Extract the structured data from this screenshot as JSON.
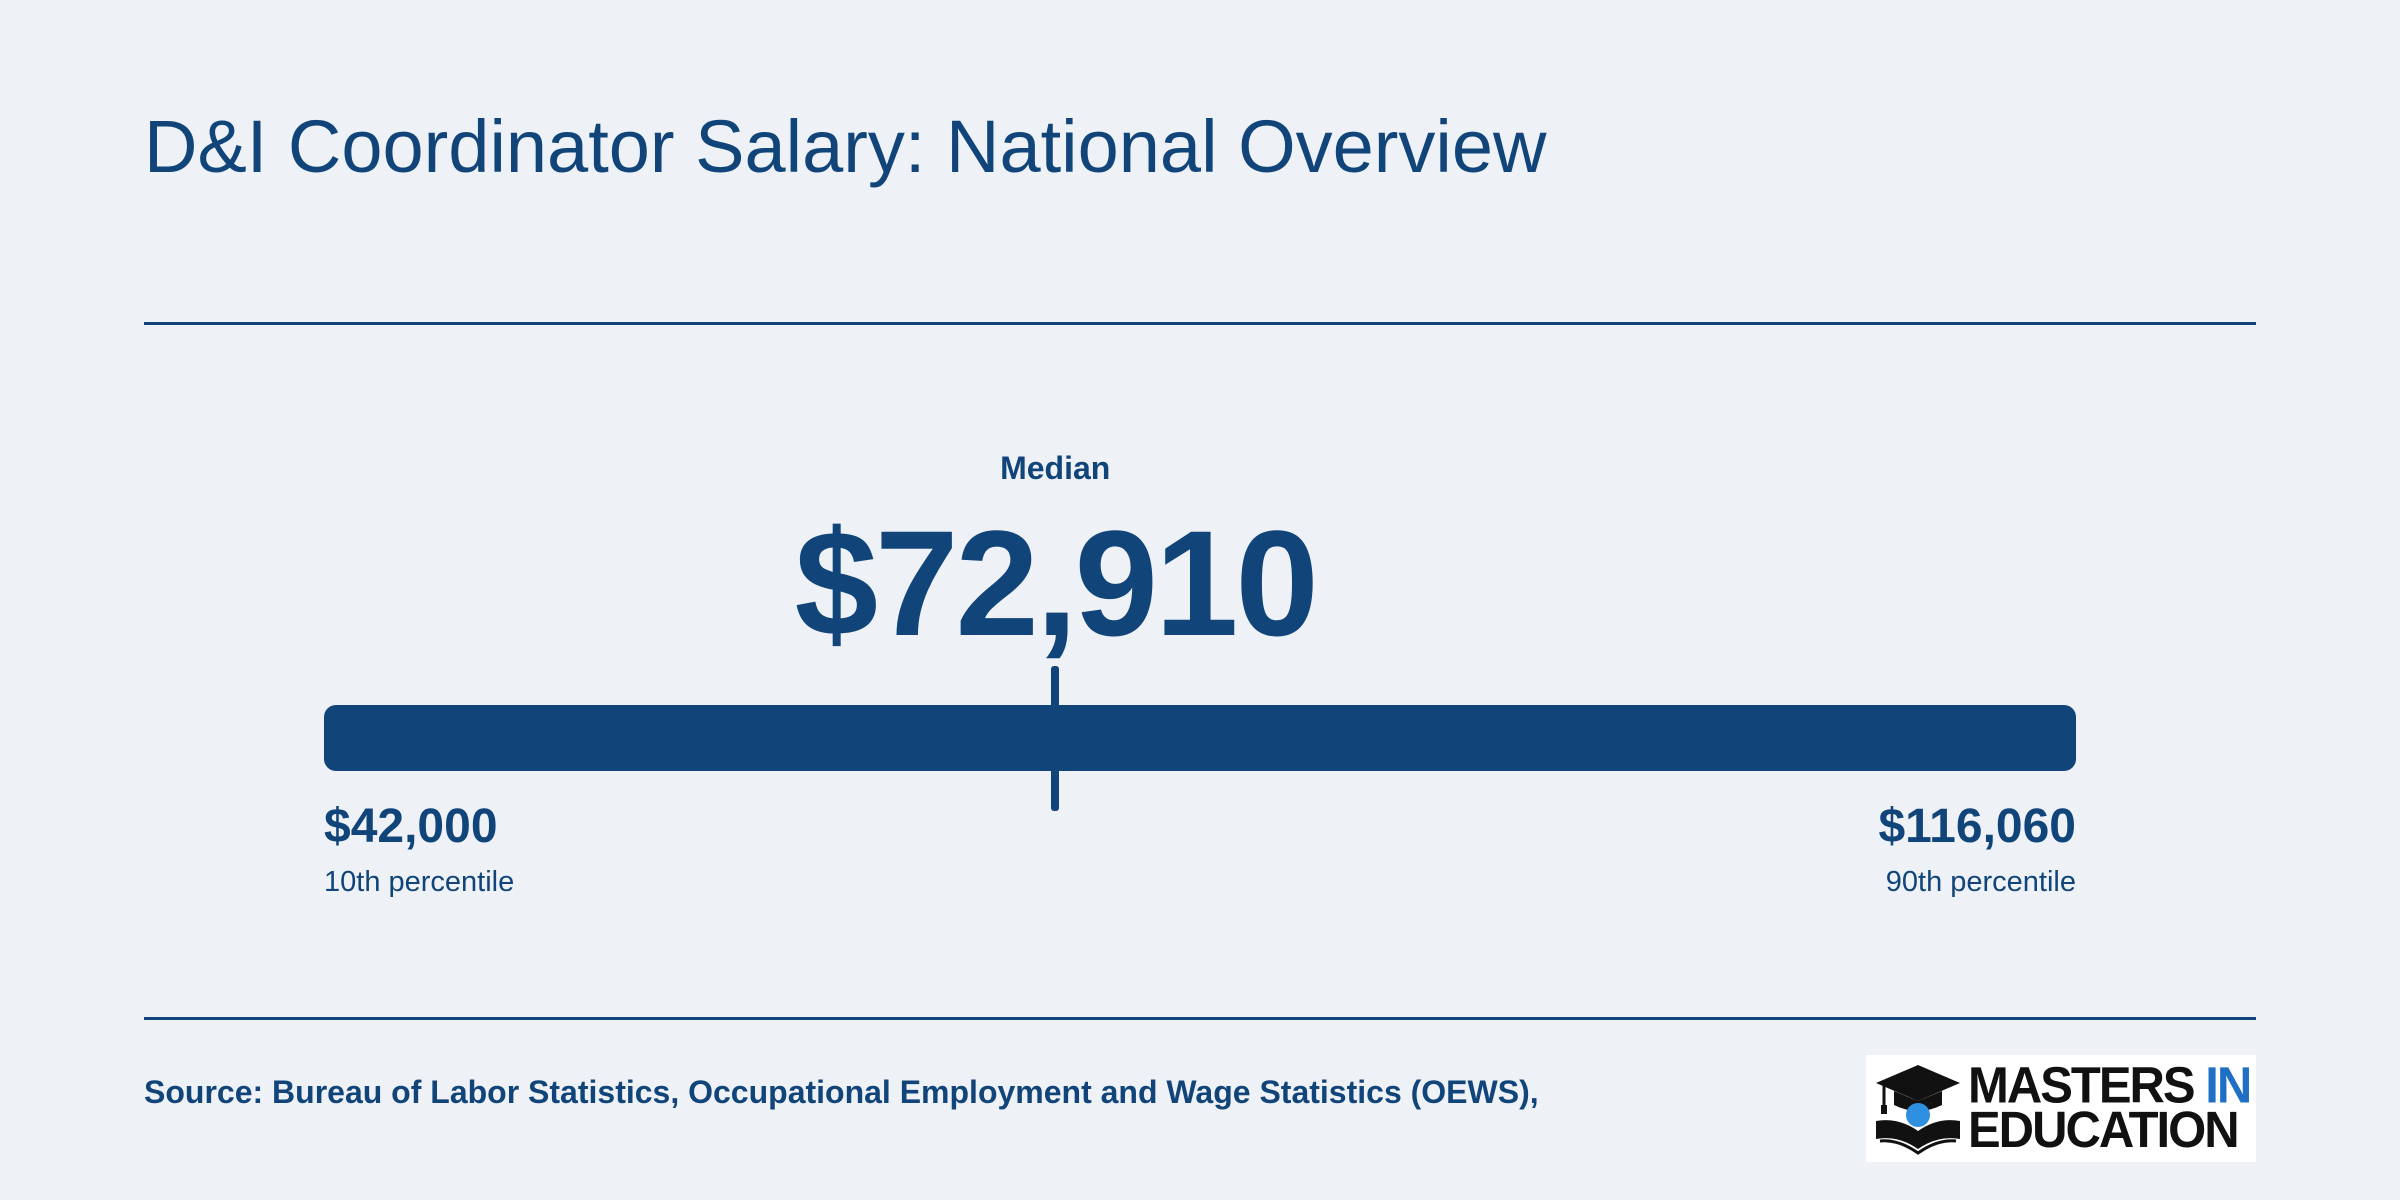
{
  "title": "D&I Coordinator Salary: National Overview",
  "chart_data": {
    "type": "range",
    "min": 42000,
    "median": 72910,
    "max": 116060,
    "median_label": "Median",
    "median_display": "$72,910",
    "min_display": "$42,000",
    "min_label": "10th percentile",
    "max_display": "$116,060",
    "max_label": "90th percentile"
  },
  "colors": {
    "background": "#eef1f6",
    "primary": "#11457a",
    "logo_accent": "#1f6fc5"
  },
  "footer": {
    "source": "Source: Bureau of Labor Statistics, Occupational Employment and Wage Statistics (OEWS),"
  },
  "logo": {
    "line1_a": "MASTERS",
    "line1_b": "IN",
    "line2": "EDUCATION",
    "icon": "graduation-cap-book-icon"
  }
}
